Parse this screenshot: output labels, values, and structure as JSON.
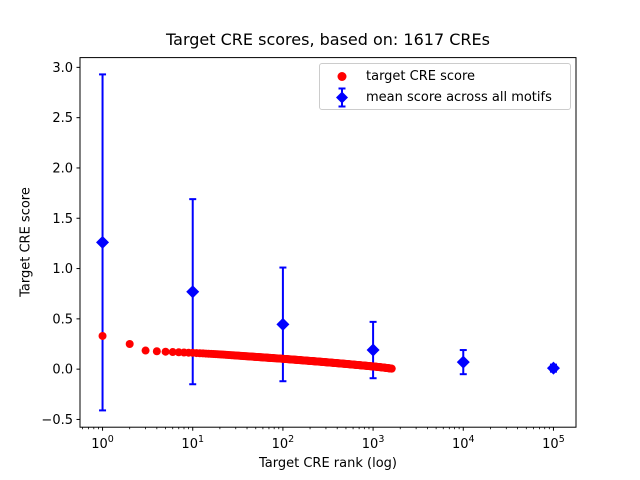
{
  "window": {
    "title": "Target CRE scores, based on: 1617 CREs"
  },
  "chart_data": {
    "type": "scatter",
    "title": "Target CRE scores, based on: 1617 CREs",
    "xlabel": "Target CRE rank (log)",
    "ylabel": "Target CRE score",
    "x_scale": "log10",
    "xlim_log10": [
      -0.25,
      5.25
    ],
    "ylim": [
      -0.577,
      3.097
    ],
    "x_major_tick_exponents": [
      0,
      1,
      2,
      3,
      4,
      5
    ],
    "x_minor_subs": [
      2,
      3,
      4,
      5,
      6,
      7,
      8,
      9
    ],
    "y_ticks": [
      -0.5,
      0.0,
      0.5,
      1.0,
      1.5,
      2.0,
      2.5,
      3.0
    ],
    "grid": false,
    "colors": {
      "target_series": "#ff0000",
      "mean_series": "#0000ff",
      "axis": "#000000",
      "legend_border": "#cccccc",
      "background": "#ffffff"
    },
    "legend": {
      "position": "upper right",
      "entries": [
        {
          "label": "target CRE score",
          "marker": "circle",
          "color": "#ff0000"
        },
        {
          "label": "mean score across all motifs",
          "marker": "diamond-errorbar",
          "color": "#0000ff"
        }
      ]
    },
    "series": [
      {
        "name": "target CRE score",
        "marker": "circle",
        "color": "#ff0000",
        "n_points": 1617,
        "rank_range": [
          1,
          1617
        ],
        "anchor_points": [
          [
            1,
            0.33
          ],
          [
            2,
            0.25
          ],
          [
            3,
            0.185
          ],
          [
            4,
            0.178
          ],
          [
            6,
            0.17
          ],
          [
            10,
            0.162
          ],
          [
            20,
            0.147
          ],
          [
            40,
            0.128
          ],
          [
            100,
            0.103
          ],
          [
            250,
            0.075
          ],
          [
            500,
            0.052
          ],
          [
            1000,
            0.027
          ],
          [
            1300,
            0.016
          ],
          [
            1617,
            0.005
          ]
        ],
        "note": "1617 dots at integer ranks 1..1617; score decays smoothly; values between anchors interpolated linearly in log10(rank)"
      },
      {
        "name": "mean score across all motifs",
        "marker": "diamond",
        "color": "#0000ff",
        "error_bars": "symmetric (mean ± std)",
        "points": [
          {
            "rank": 1,
            "mean": 1.26,
            "std": 1.67
          },
          {
            "rank": 10,
            "mean": 0.77,
            "std": 0.92
          },
          {
            "rank": 100,
            "mean": 0.445,
            "std": 0.565
          },
          {
            "rank": 1000,
            "mean": 0.19,
            "std": 0.28
          },
          {
            "rank": 10000,
            "mean": 0.07,
            "std": 0.12
          },
          {
            "rank": 100000,
            "mean": 0.01,
            "std": 0.035
          }
        ]
      }
    ]
  }
}
